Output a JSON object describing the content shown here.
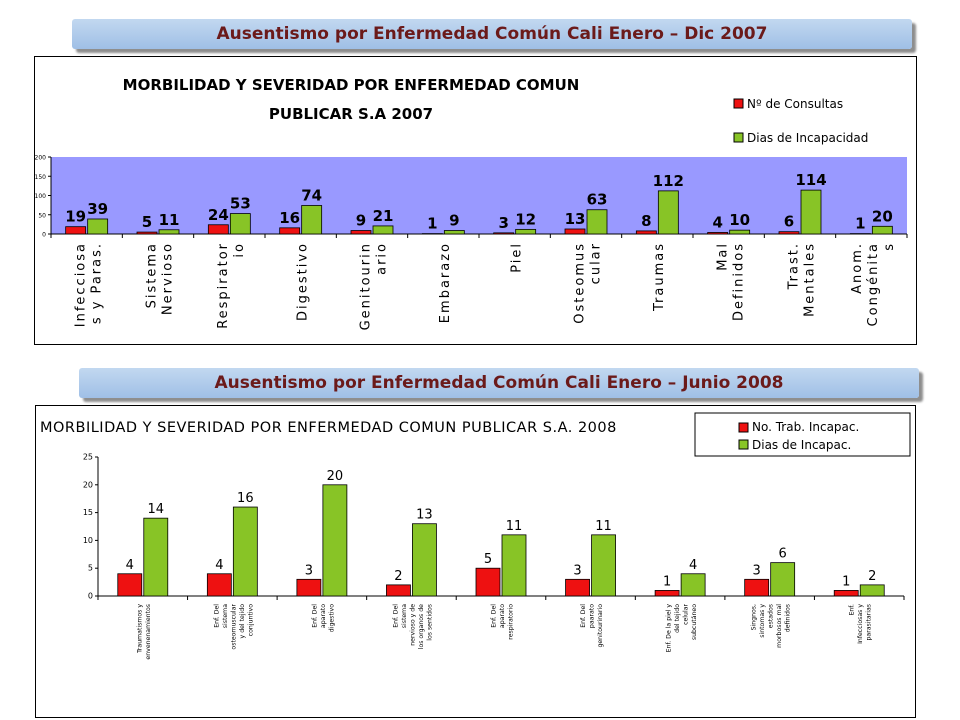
{
  "banners": {
    "top": "Ausentismo por Enfermedad Común Cali  Enero – Dic 2007",
    "bottom": "Ausentismo por Enfermedad Común Cali  Enero – Junio 2008"
  },
  "chart_data": [
    {
      "type": "bar",
      "title_line1": "MORBILIDAD Y SEVERIDAD POR ENFERMEDAD COMUN",
      "title_line2": "PUBLICAR S.A  2007",
      "categories": [
        [
          "Infecciosa",
          "s y Paras."
        ],
        [
          "Sistema",
          "Nervioso"
        ],
        [
          "Respirator",
          "io"
        ],
        [
          "Digestivo"
        ],
        [
          "Genitourin",
          "ario"
        ],
        [
          "Embarazo"
        ],
        [
          "Piel"
        ],
        [
          "Osteomus",
          "cular"
        ],
        [
          "Traumas"
        ],
        [
          "Mal",
          "Definidos"
        ],
        [
          "Trast.",
          "Mentales"
        ],
        [
          "Anom.",
          "Congénita",
          "s"
        ]
      ],
      "series": [
        {
          "name": "Nº de Consultas",
          "color": "#ee1111",
          "values": [
            19,
            5,
            24,
            16,
            9,
            1,
            3,
            13,
            8,
            4,
            6,
            1
          ]
        },
        {
          "name": "Dias de Incapacidad",
          "color": "#88c426",
          "values": [
            39,
            11,
            53,
            74,
            21,
            9,
            12,
            63,
            112,
            10,
            114,
            20
          ]
        }
      ],
      "ylim": [
        0,
        200
      ],
      "yticks": [
        0,
        50,
        100,
        150,
        200
      ],
      "legend_position": "top-right",
      "plot_background": "#9999ff"
    },
    {
      "type": "bar",
      "title": "MORBILIDAD Y SEVERIDAD POR ENFERMEDAD COMUN PUBLICAR S.A. 2008",
      "categories": [
        [
          "Traumatismos y",
          "envenenamientos"
        ],
        [
          "Enf. Del",
          "sistema",
          "osteomuscular",
          "y del tejido",
          "conjuntivo"
        ],
        [
          "Enf. Del",
          "aparato",
          "digestivo"
        ],
        [
          "Enf. Del",
          "sistema",
          "nervioso y de",
          "los organos de",
          "los sentidos"
        ],
        [
          "Enf. Del",
          "aparato",
          "respiratorio"
        ],
        [
          "Enf. Del",
          "paarato",
          "genitourinario"
        ],
        [
          "Enf. De la piel y",
          "del tejido",
          "celular",
          "subcutáneo"
        ],
        [
          "Singnos,",
          "sintomas y",
          "estados",
          "morbosos mal",
          "definidos"
        ],
        [
          "Enf.",
          "Infecciosas y",
          "parasitarias"
        ]
      ],
      "series": [
        {
          "name": "No. Trab. Incapac.",
          "color": "#ee1111",
          "values": [
            4,
            4,
            3,
            2,
            5,
            3,
            1,
            3,
            1
          ]
        },
        {
          "name": "Dias de Incapac.",
          "color": "#88c426",
          "values": [
            14,
            16,
            20,
            13,
            11,
            11,
            4,
            6,
            2
          ]
        }
      ],
      "ylim": [
        0,
        25
      ],
      "yticks": [
        0,
        5,
        10,
        15,
        20,
        25
      ],
      "legend_position": "top-right",
      "plot_background": "#ffffff"
    }
  ]
}
